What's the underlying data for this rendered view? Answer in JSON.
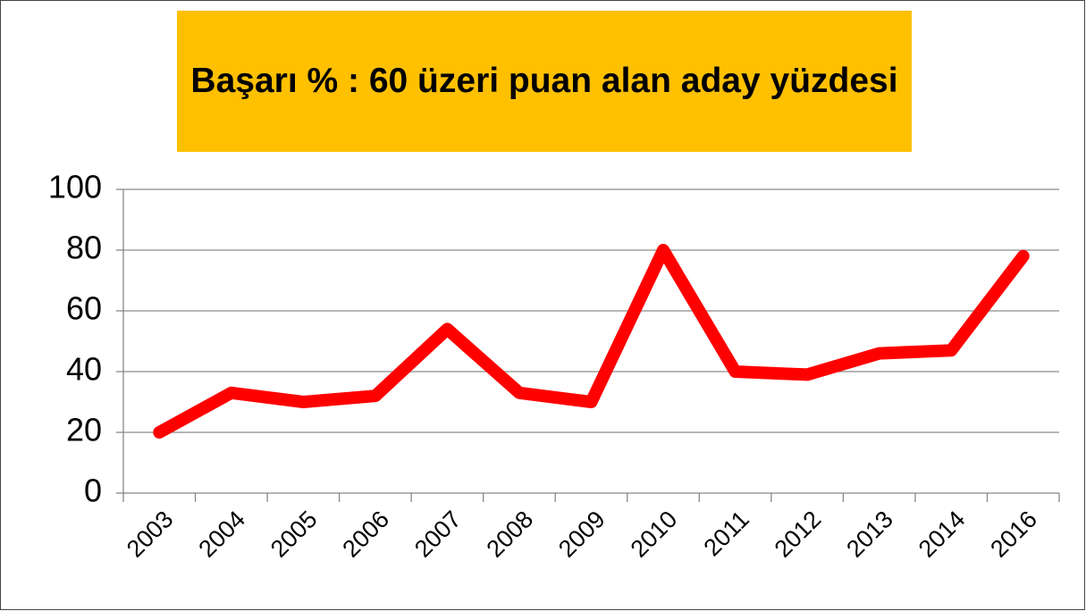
{
  "chart_data": {
    "type": "line",
    "title": "Başarı % : 60 üzeri puan alan aday yüzdesi",
    "categories": [
      "2003",
      "2004",
      "2005",
      "2006",
      "2007",
      "2008",
      "2009",
      "2010",
      "2011",
      "2012",
      "2013",
      "2014",
      "2016"
    ],
    "series": [
      {
        "name": "Başarı %",
        "color": "#ff0000",
        "values": [
          20,
          33,
          30,
          32,
          54,
          33,
          30,
          80,
          40,
          39,
          46,
          47,
          78
        ]
      }
    ],
    "ylim": [
      0,
      100
    ],
    "yticks": [
      0,
      20,
      40,
      60,
      80,
      100
    ],
    "grid": true
  }
}
